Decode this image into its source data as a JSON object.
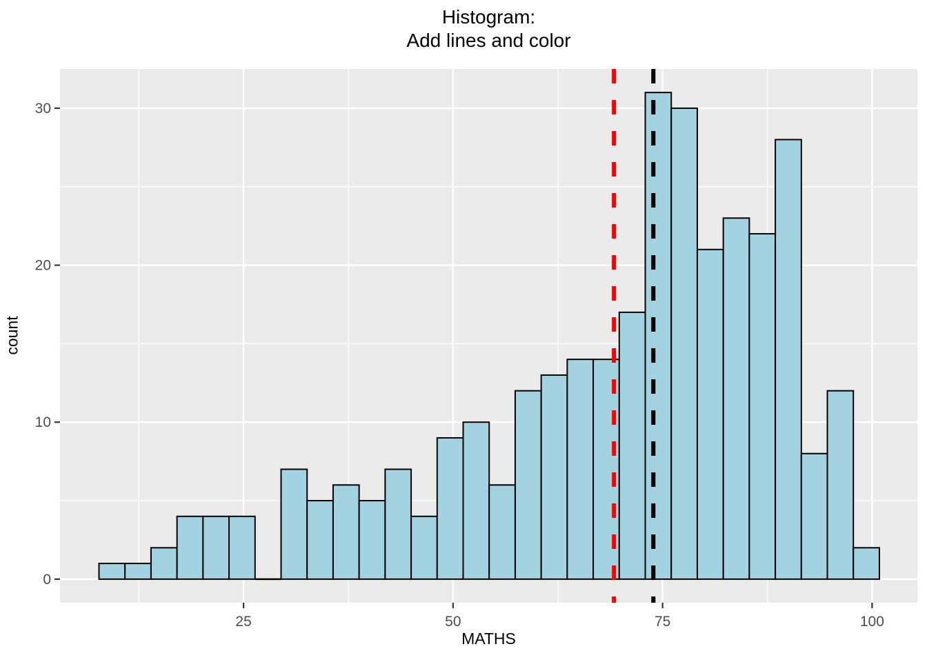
{
  "title": {
    "line1": "Histogram:",
    "line2": "Add lines and color"
  },
  "axes": {
    "x_label": "MATHS",
    "y_label": "count"
  },
  "chart_data": {
    "type": "bar",
    "subtype": "histogram",
    "title": "Histogram: Add lines and color",
    "xlabel": "MATHS",
    "ylabel": "count",
    "bin_start": 7.75,
    "bin_width": 3.104,
    "counts": [
      1,
      1,
      2,
      4,
      4,
      4,
      0,
      7,
      5,
      6,
      5,
      7,
      4,
      9,
      10,
      6,
      12,
      13,
      14,
      14,
      17,
      31,
      30,
      21,
      23,
      22,
      28,
      8,
      12,
      2
    ],
    "x_ticks": [
      25,
      50,
      75,
      100
    ],
    "x_minor_gridlines": [
      12.5,
      37.5,
      62.5,
      87.5
    ],
    "y_ticks": [
      0,
      10,
      20,
      30
    ],
    "y_minor_gridlines": [
      5,
      15,
      25
    ],
    "x_range": [
      3.1,
      105.4
    ],
    "y_range": [
      -1.5,
      32.5
    ],
    "vlines": [
      {
        "x": 69.2,
        "color": "#FF0000",
        "style": "dashed",
        "name": "red-dashed-vline"
      },
      {
        "x": 73.9,
        "color": "#000000",
        "style": "dashed",
        "name": "black-dashed-vline"
      }
    ],
    "grid": true,
    "legend_position": "none",
    "colors": {
      "bar_fill": "#A3D2E1",
      "bar_stroke": "#000000",
      "panel_background": "#EBEBEB",
      "gridline": "#FFFFFF",
      "tick_label": "#4D4D4D",
      "tick_mark": "#333333",
      "title_text": "#000000"
    }
  }
}
